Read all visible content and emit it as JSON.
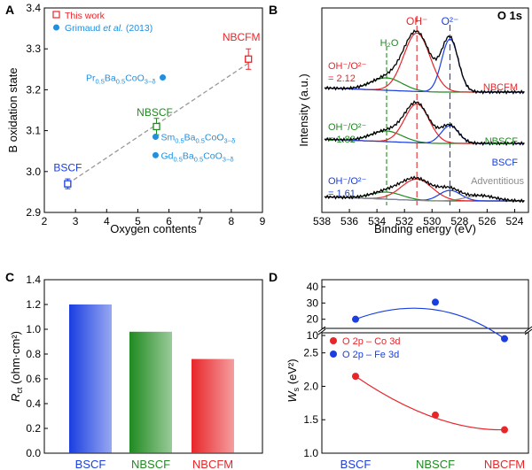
{
  "colors": {
    "red": "#e8262a",
    "blue": "#1a3ee0",
    "green": "#1f8a1f",
    "lightblue": "#1f8fe0",
    "gray": "#8c8c8c",
    "black": "#000000"
  },
  "chart_data": [
    {
      "panel": "A",
      "type": "scatter",
      "xlabel": "Oxygen contents",
      "ylabel": "B oxidation state",
      "xlim": [
        2,
        9
      ],
      "ylim": [
        2.9,
        3.4
      ],
      "xticks": [
        "2",
        "3",
        "4",
        "5",
        "6",
        "7",
        "8",
        "9"
      ],
      "yticks": [
        "2.9",
        "3.0",
        "3.1",
        "3.2",
        "3.3",
        "3.4"
      ],
      "legend": [
        {
          "label": "This work",
          "marker": "open-square",
          "color": "red"
        },
        {
          "label_prefix": "Grimaud ",
          "label_italic": "et al.",
          "label_suffix": " (2013)",
          "marker": "circle",
          "color": "lightblue"
        }
      ],
      "series": [
        {
          "name": "This work",
          "points": [
            {
              "label": "BSCF",
              "x": 2.75,
              "y": 2.97,
              "err": 0.012,
              "color": "blue"
            },
            {
              "label": "NBSCF",
              "x": 5.6,
              "y": 3.11,
              "err": 0.02,
              "color": "green"
            },
            {
              "label": "NBCFM",
              "x": 8.55,
              "y": 3.275,
              "err": 0.025,
              "color": "red"
            }
          ]
        },
        {
          "name": "Grimaud et al. (2013)",
          "points": [
            {
              "x": 5.8,
              "y": 3.23,
              "base": "Pr",
              "sub1": "0.5",
              "mid": "Ba",
              "sub2": "0.5",
              "tail": "CoO",
              "sub3": "3−δ"
            },
            {
              "x": 5.57,
              "y": 3.085,
              "base": "Sm",
              "sub1": "0.5",
              "mid": "Ba",
              "sub2": "0.5",
              "tail": "CoO",
              "sub3": "3−δ"
            },
            {
              "x": 5.57,
              "y": 3.04,
              "base": "Gd",
              "sub1": "0.5",
              "mid": "Ba",
              "sub2": "0.5",
              "tail": "CoO",
              "sub3": "3−δ"
            }
          ]
        }
      ],
      "fit_line": {
        "x": [
          2.75,
          8.55
        ],
        "y": [
          2.97,
          3.265
        ],
        "style": "dashed"
      }
    },
    {
      "panel": "B",
      "type": "line",
      "title": "O 1s",
      "xlabel": "Binding energy (eV)",
      "ylabel": "Intensity (a.u.)",
      "xlim": [
        538,
        523
      ],
      "xticks": [
        "538",
        "536",
        "534",
        "532",
        "530",
        "528",
        "526",
        "524"
      ],
      "peak_markers": [
        {
          "label": "H₂O",
          "x": 533.3,
          "color": "green"
        },
        {
          "label": "OH⁻",
          "x": 531.1,
          "color": "red"
        },
        {
          "label": "O²⁻",
          "x": 528.7,
          "color": "blue"
        }
      ],
      "spectra": [
        {
          "name": "NBCFM",
          "color": "red",
          "ratio_label": "OH⁻/O²⁻",
          "ratio_value": "= 2.12"
        },
        {
          "name": "NBSCF",
          "color": "green",
          "ratio_label": "OH⁻/O²⁻",
          "ratio_value": "= 1.82"
        },
        {
          "name": "BSCF",
          "color": "blue",
          "ratio_label": "OH⁻/O²⁻",
          "ratio_value": "= 1.61",
          "extra_label": "Adventitious"
        }
      ]
    },
    {
      "panel": "C",
      "type": "bar",
      "ylabel_main": "R",
      "ylabel_sub": "ct",
      "ylabel_unit": " (ohm·cm²)",
      "ylim": [
        0,
        1.4
      ],
      "yticks": [
        "0.0",
        "0.2",
        "0.4",
        "0.6",
        "0.8",
        "1.0",
        "1.2",
        "1.4"
      ],
      "categories": [
        "BSCF",
        "NBSCF",
        "NBCFM"
      ],
      "values": [
        1.2,
        0.98,
        0.76
      ],
      "category_colors": [
        "blue",
        "green",
        "red"
      ]
    },
    {
      "panel": "D",
      "type": "scatter",
      "ylabel_main": "W",
      "ylabel_sub": "s",
      "ylabel_unit": " (eV²)",
      "categories": [
        "BSCF",
        "NBSCF",
        "NBCFM"
      ],
      "category_colors": [
        "blue",
        "green",
        "red"
      ],
      "upper_ylim": [
        10,
        40
      ],
      "upper_yticks": [
        "10",
        "20",
        "30",
        "40"
      ],
      "lower_ylim": [
        1.0,
        2.8
      ],
      "lower_yticks": [
        "1.0",
        "1.5",
        "2.0",
        "2.5"
      ],
      "legend": [
        "O 2p – Co 3d",
        "O 2p – Fe 3d"
      ],
      "series": [
        {
          "name": "O 2p – Co 3d",
          "color": "red",
          "values": [
            2.15,
            1.57,
            1.35
          ]
        },
        {
          "name": "O 2p – Fe 3d",
          "color": "blue",
          "values": [
            20,
            30.5,
            8
          ]
        }
      ]
    }
  ],
  "panel_labels": [
    "A",
    "B",
    "C",
    "D"
  ]
}
